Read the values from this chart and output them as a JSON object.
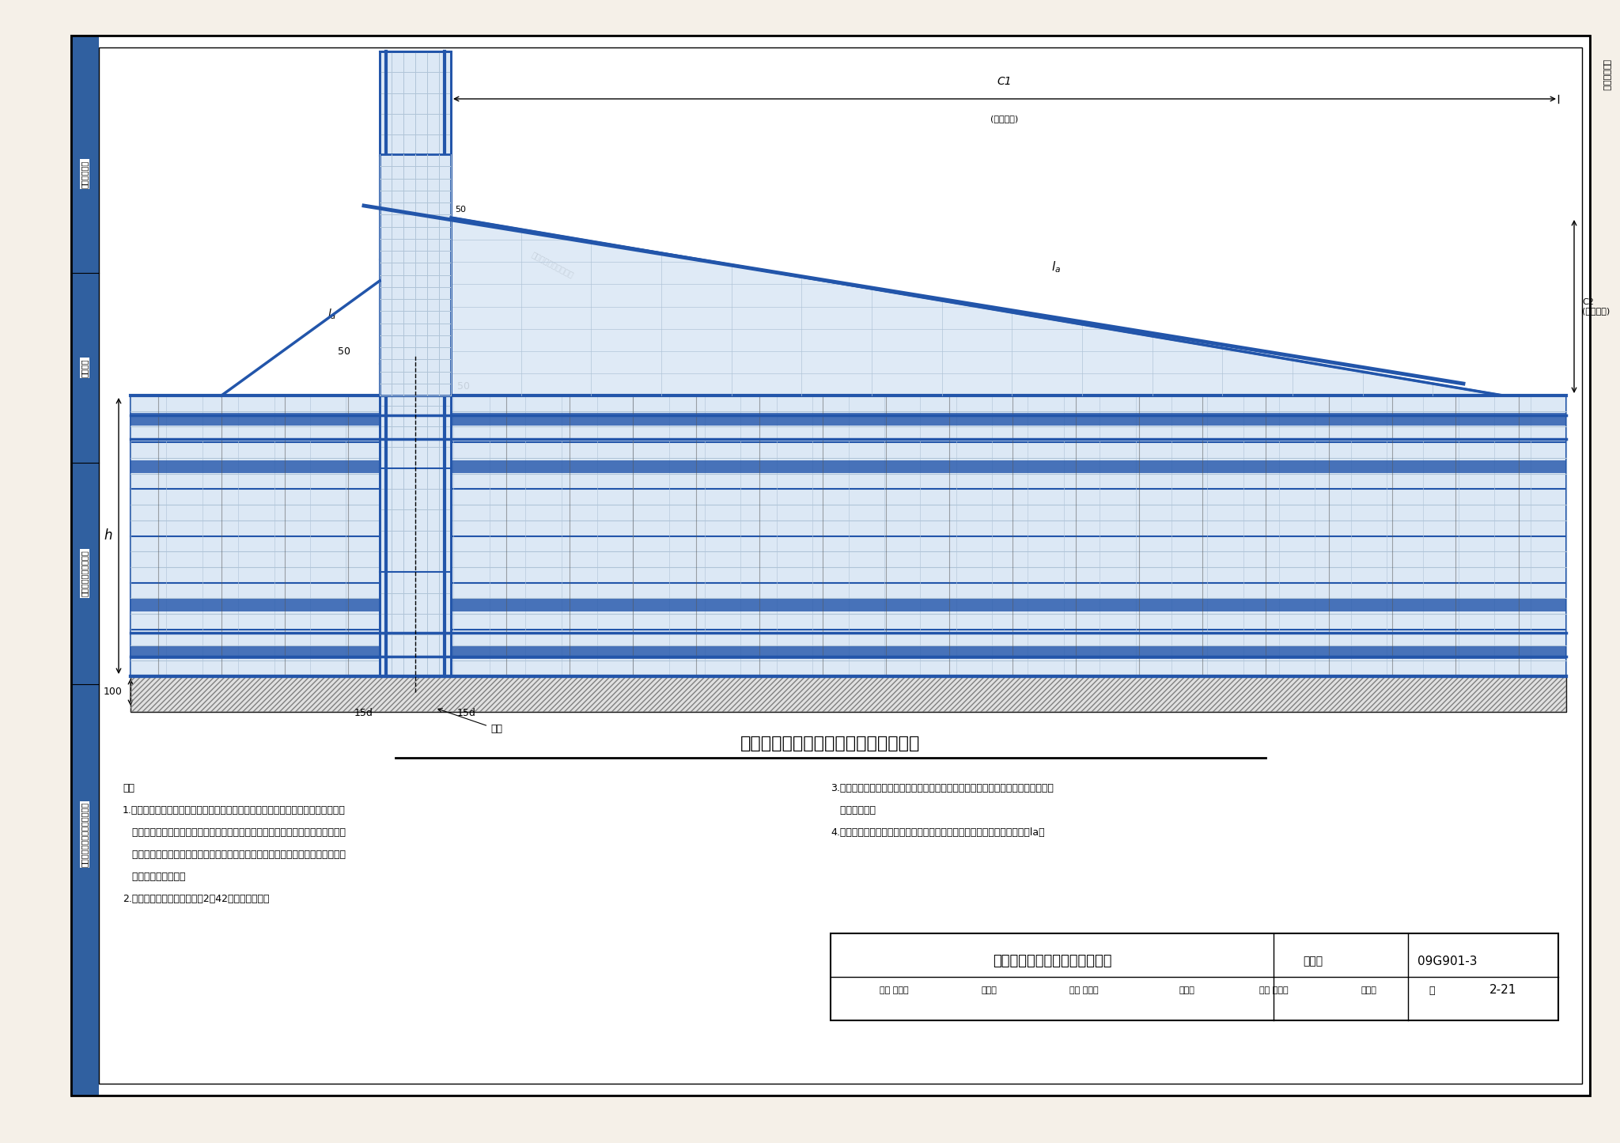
{
  "title": "基础主梁梁高加腋钢筋排布构造（一）",
  "figure_number": "09G901-3",
  "page": "2-21",
  "title_bottom": "基础主梁梁高加腋钢筋排布构造",
  "bg_color": "#f5f0e8",
  "drawing_bg": "#ffffff",
  "blue_color": "#4a7ab5",
  "dark_blue": "#2255aa",
  "light_blue": "#aac4e0",
  "grid_color": "#b0c4d8",
  "line_color": "#333333",
  "dim_color": "#222222",
  "left_tab_color": "#3060a0",
  "left_labels": [
    "一般构造要求",
    "筏形基础",
    "筏形基础和地下室结构",
    "独立基础、条形基础、桩基承台"
  ],
  "notes": [
    "注：",
    "1.当筏形基础平法施工图中基础梁梁高加腋部位的配筋未注明时，其梁腋的顶部斜纵",
    "   钢筋为基础梁顶部第一排纵筋根数少一根（且不少于两根），并排空安放，其强度",
    "   和直径与基础梁顶部第一排纵筋相同。梁腋范围的箍筋与基础梁的箍筋配置相同，",
    "   仅箍筋高度为变值。",
    "2.柱插筋构造应满足本图集第2－42页的构造要求。"
  ],
  "notes2": [
    "3.基础主梁在梁柱结合部位所加侧腋的顶部与基础主梁非加腋段顶部一平，不随梁高",
    "   加腋而变化。",
    "4.当设计注明基础梁中的侧面钢筋为抗扭钢筋且未贯通施工时，锚固长度为la。"
  ]
}
